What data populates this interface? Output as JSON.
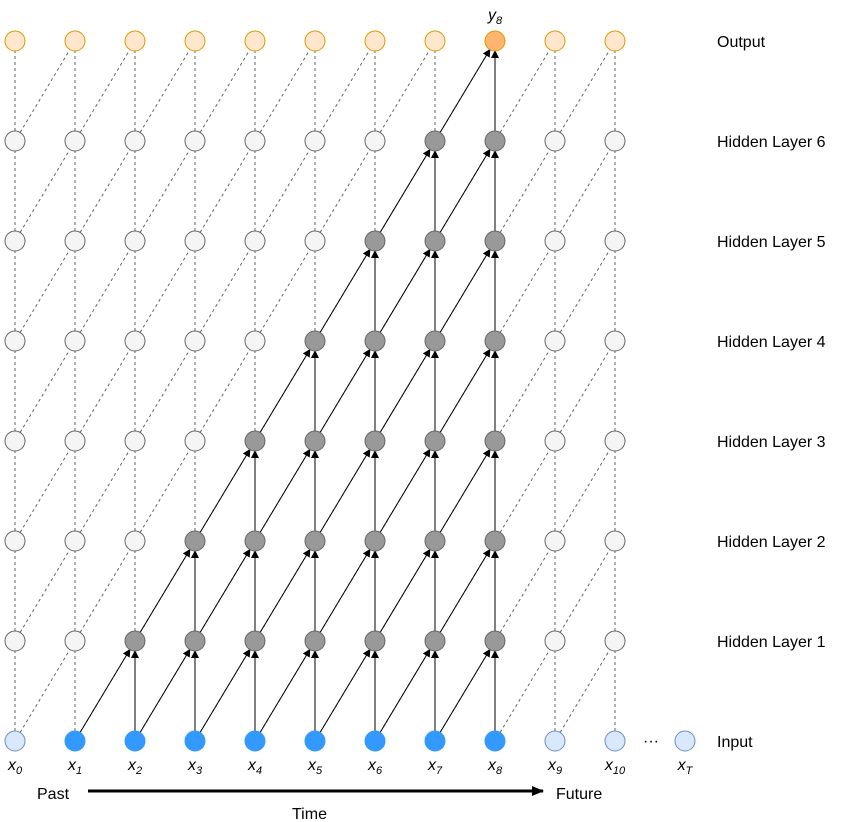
{
  "layers": [
    {
      "id": "output",
      "label": "Output"
    },
    {
      "id": "hidden6",
      "label": "Hidden Layer 6"
    },
    {
      "id": "hidden5",
      "label": "Hidden Layer 5"
    },
    {
      "id": "hidden4",
      "label": "Hidden Layer 4"
    },
    {
      "id": "hidden3",
      "label": "Hidden Layer 3"
    },
    {
      "id": "hidden2",
      "label": "Hidden Layer 2"
    },
    {
      "id": "hidden1",
      "label": "Hidden Layer 1"
    },
    {
      "id": "input",
      "label": "Input"
    }
  ],
  "inputs": [
    {
      "base": "x",
      "sub": "0"
    },
    {
      "base": "x",
      "sub": "1"
    },
    {
      "base": "x",
      "sub": "2"
    },
    {
      "base": "x",
      "sub": "3"
    },
    {
      "base": "x",
      "sub": "4"
    },
    {
      "base": "x",
      "sub": "5"
    },
    {
      "base": "x",
      "sub": "6"
    },
    {
      "base": "x",
      "sub": "7"
    },
    {
      "base": "x",
      "sub": "8"
    },
    {
      "base": "x",
      "sub": "9"
    },
    {
      "base": "x",
      "sub": "10"
    }
  ],
  "ellipsis": "···",
  "last_input": {
    "base": "x",
    "sub": "T"
  },
  "output_label": {
    "base": "y",
    "sub": "8"
  },
  "axis": {
    "past": "Past",
    "future": "Future",
    "time": "Time"
  },
  "colors": {
    "output_fill": "#ffe6cc",
    "output_stroke": "#d79b00",
    "output_active_fill": "#ffb570",
    "hidden_fill": "#f5f5f5",
    "hidden_stroke": "#666666",
    "hidden_active_fill": "#999999",
    "input_fill": "#dae8fc",
    "input_stroke": "#6c8ebf",
    "input_active_fill": "#3399ff",
    "edge_dashed": "#666666",
    "edge_active": "#000000"
  }
}
